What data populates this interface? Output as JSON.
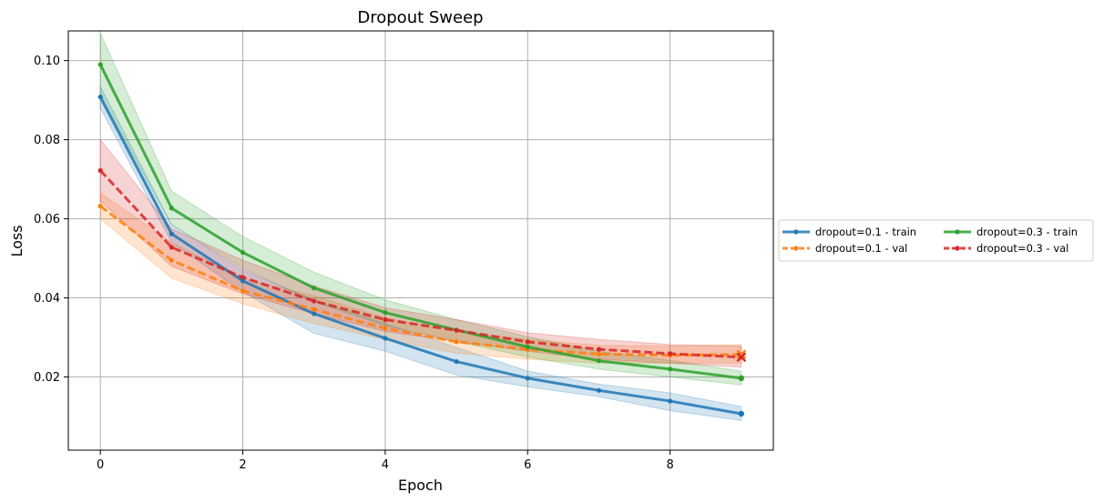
{
  "chart_data": {
    "type": "line",
    "title": "Dropout Sweep",
    "xlabel": "Epoch",
    "ylabel": "Loss",
    "xlim": [
      -0.45,
      9.45
    ],
    "ylim": [
      0.0015,
      0.1075
    ],
    "xticks": [
      0,
      2,
      4,
      6,
      8
    ],
    "xtick_labels": [
      "0",
      "2",
      "4",
      "6",
      "8"
    ],
    "yticks": [
      0.02,
      0.04,
      0.06,
      0.08,
      0.1
    ],
    "ytick_labels": [
      "0.02",
      "0.04",
      "0.06",
      "0.08",
      "0.10"
    ],
    "grid": true,
    "legend_position": "outside-right",
    "legend_columns": 2,
    "x": [
      0,
      1,
      2,
      3,
      4,
      5,
      6,
      7,
      8,
      9
    ],
    "series": [
      {
        "name": "dropout=0.1 - train",
        "color": "#1f77b4",
        "linestyle": "solid",
        "values": [
          0.0908,
          0.0562,
          0.0443,
          0.036,
          0.0298,
          0.0239,
          0.0197,
          0.0166,
          0.0139,
          0.0107
        ],
        "band_lower": [
          0.088,
          0.054,
          0.0415,
          0.031,
          0.0265,
          0.0205,
          0.0175,
          0.015,
          0.0115,
          0.009
        ],
        "band_upper": [
          0.0935,
          0.0585,
          0.047,
          0.0395,
          0.0335,
          0.0275,
          0.0215,
          0.0182,
          0.016,
          0.0125
        ],
        "final_marker": "circle"
      },
      {
        "name": "dropout=0.1 - val",
        "color": "#ff7f0e",
        "linestyle": "dashed",
        "values": [
          0.0632,
          0.0495,
          0.0418,
          0.0371,
          0.0323,
          0.0289,
          0.027,
          0.0258,
          0.0255,
          0.0257
        ],
        "band_lower": [
          0.06,
          0.045,
          0.0385,
          0.0335,
          0.0295,
          0.026,
          0.0245,
          0.0235,
          0.0235,
          0.0235
        ],
        "band_upper": [
          0.0665,
          0.054,
          0.045,
          0.0405,
          0.035,
          0.0315,
          0.0295,
          0.028,
          0.0278,
          0.0282
        ],
        "final_marker": "x"
      },
      {
        "name": "dropout=0.3 - train",
        "color": "#2ca02c",
        "linestyle": "solid",
        "values": [
          0.099,
          0.0627,
          0.0515,
          0.0425,
          0.0363,
          0.0319,
          0.0276,
          0.0241,
          0.022,
          0.0197
        ],
        "band_lower": [
          0.091,
          0.0585,
          0.0475,
          0.039,
          0.033,
          0.029,
          0.025,
          0.022,
          0.02,
          0.018
        ],
        "band_upper": [
          0.107,
          0.067,
          0.0555,
          0.0465,
          0.0395,
          0.0345,
          0.0302,
          0.0265,
          0.0242,
          0.0215
        ],
        "final_marker": "circle"
      },
      {
        "name": "dropout=0.3 - val",
        "color": "#d62728",
        "linestyle": "dashed",
        "values": [
          0.0722,
          0.0528,
          0.0452,
          0.0392,
          0.0345,
          0.0318,
          0.0289,
          0.027,
          0.0259,
          0.025
        ],
        "band_lower": [
          0.0645,
          0.048,
          0.041,
          0.036,
          0.0315,
          0.029,
          0.0265,
          0.0245,
          0.0235,
          0.0225
        ],
        "band_upper": [
          0.08,
          0.0575,
          0.0495,
          0.043,
          0.0375,
          0.0345,
          0.0312,
          0.0295,
          0.0282,
          0.0278
        ],
        "final_marker": "x"
      }
    ]
  }
}
